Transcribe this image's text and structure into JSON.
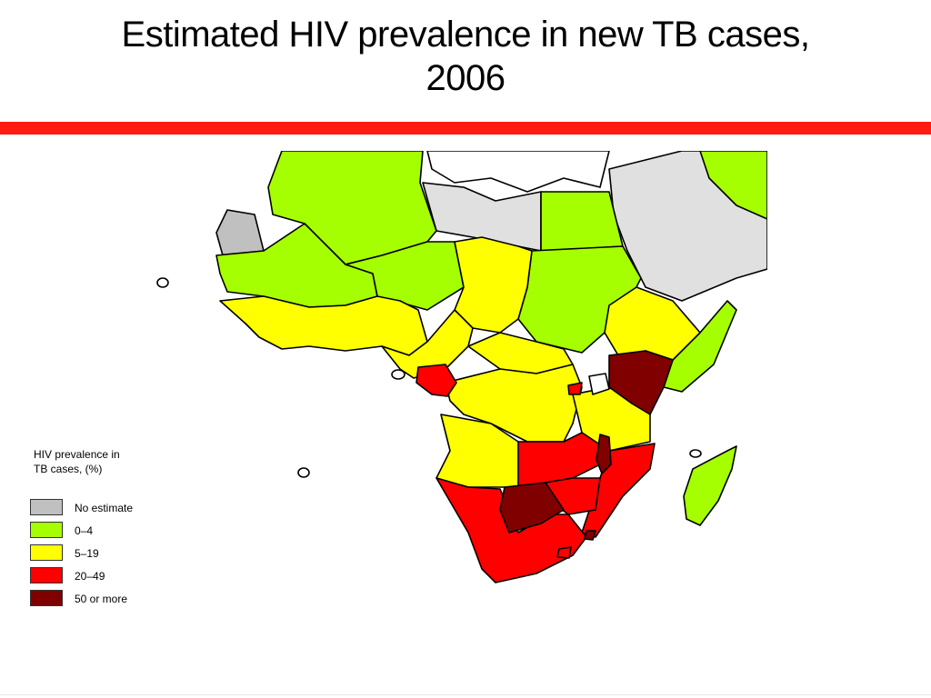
{
  "title": {
    "line1": "Estimated HIV prevalence in new TB cases,",
    "line2": "2006"
  },
  "legend": {
    "title_line1": "HIV prevalence in",
    "title_line2": "TB cases, (%)",
    "items": [
      {
        "label": "No estimate",
        "color": "#c0c0c0"
      },
      {
        "label": "0–4",
        "color": "#a6ff00"
      },
      {
        "label": "5–19",
        "color": "#ffff00"
      },
      {
        "label": "20–49",
        "color": "#ff0000"
      },
      {
        "label": "50 or more",
        "color": "#800000"
      }
    ]
  },
  "colors": {
    "banner": "#ff1a12",
    "no_data_region": "#e0e0e0",
    "outside": "#ffffff"
  }
}
